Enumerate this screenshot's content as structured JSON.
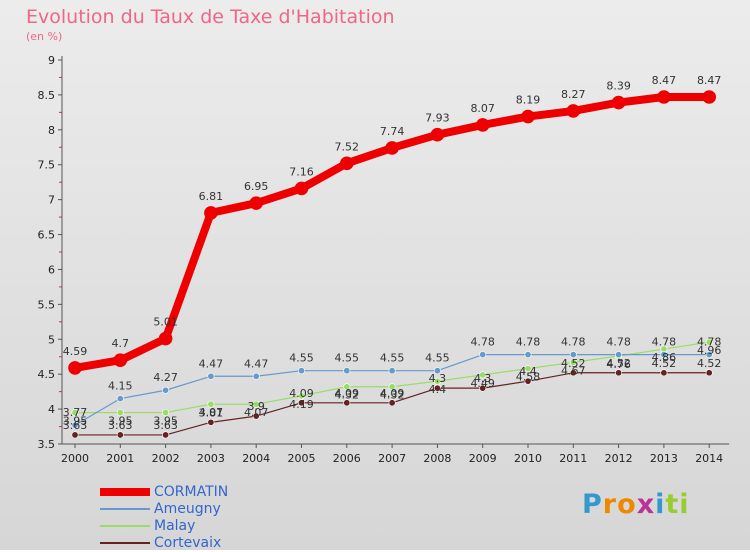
{
  "chart_data": {
    "type": "line",
    "title": "Evolution du Taux de Taxe d'Habitation",
    "subtitle": "(en %)",
    "x": [
      "2000",
      "2001",
      "2002",
      "2003",
      "2004",
      "2005",
      "2006",
      "2007",
      "2008",
      "2009",
      "2010",
      "2011",
      "2012",
      "2013",
      "2014"
    ],
    "ylim": [
      3.5,
      9
    ],
    "yticks": [
      "3.5",
      "4",
      "4.5",
      "5",
      "5.5",
      "6",
      "6.5",
      "7",
      "7.5",
      "8",
      "8.5",
      "9"
    ],
    "grid": false,
    "legend_position": "bottom-left",
    "series": [
      {
        "name": "CORMATIN",
        "color": "#ee0000",
        "values": [
          4.59,
          4.7,
          5.01,
          6.81,
          6.95,
          7.16,
          7.52,
          7.74,
          7.93,
          8.07,
          8.19,
          8.27,
          8.39,
          8.47,
          8.47
        ],
        "labels": [
          "4.59",
          "4.7",
          "5.01",
          "6.81",
          "6.95",
          "7.16",
          "7.52",
          "7.74",
          "7.93",
          "8.07",
          "8.19",
          "8.27",
          "8.39",
          "8.47",
          "8.47"
        ]
      },
      {
        "name": "Ameugny",
        "color": "#6699cc",
        "values": [
          3.77,
          4.15,
          4.27,
          4.47,
          4.47,
          4.55,
          4.55,
          4.55,
          4.55,
          4.78,
          4.78,
          4.78,
          4.78,
          4.78,
          4.78
        ],
        "labels": [
          "3.77",
          "4.15",
          "4.27",
          "4.47",
          "4.47",
          "4.55",
          "4.55",
          "4.55",
          "4.55",
          "4.78",
          "4.78",
          "4.78",
          "4.78",
          "4.78",
          "4.78"
        ]
      },
      {
        "name": "Malay",
        "color": "#99dd66",
        "values": [
          3.95,
          3.95,
          3.95,
          4.07,
          4.07,
          4.19,
          4.32,
          4.32,
          4.4,
          4.49,
          4.58,
          4.67,
          4.76,
          4.86,
          4.96
        ],
        "labels": [
          "3.95",
          "3.95",
          "3.95",
          "4.07",
          "4.07",
          "4.19",
          "4.32",
          "4.32",
          "4.4",
          "4.49",
          "4.58",
          "4.67",
          "4.76",
          "4.86",
          "4.96"
        ]
      },
      {
        "name": "Cortevaix",
        "color": "#662222",
        "values": [
          3.63,
          3.63,
          3.63,
          3.81,
          3.9,
          4.09,
          4.09,
          4.09,
          4.3,
          4.3,
          4.4,
          4.52,
          4.52,
          4.52,
          4.52
        ],
        "labels": [
          "3.63",
          "3.63",
          "3.63",
          "3.81",
          "3.9",
          "4.09",
          "4.09",
          "4.09",
          "4.3",
          "4.3",
          "4.4",
          "4.52",
          "4.52",
          "4.52",
          "4.52"
        ]
      }
    ]
  },
  "logo": {
    "letters": [
      {
        "ch": "P",
        "color": "#3399cc"
      },
      {
        "ch": "r",
        "color": "#ee8800"
      },
      {
        "ch": "o",
        "color": "#ee8800"
      },
      {
        "ch": "x",
        "color": "#bb3399"
      },
      {
        "ch": "i",
        "color": "#3399cc"
      },
      {
        "ch": "t",
        "color": "#99cc33"
      },
      {
        "ch": "i",
        "color": "#99cc33"
      }
    ]
  }
}
